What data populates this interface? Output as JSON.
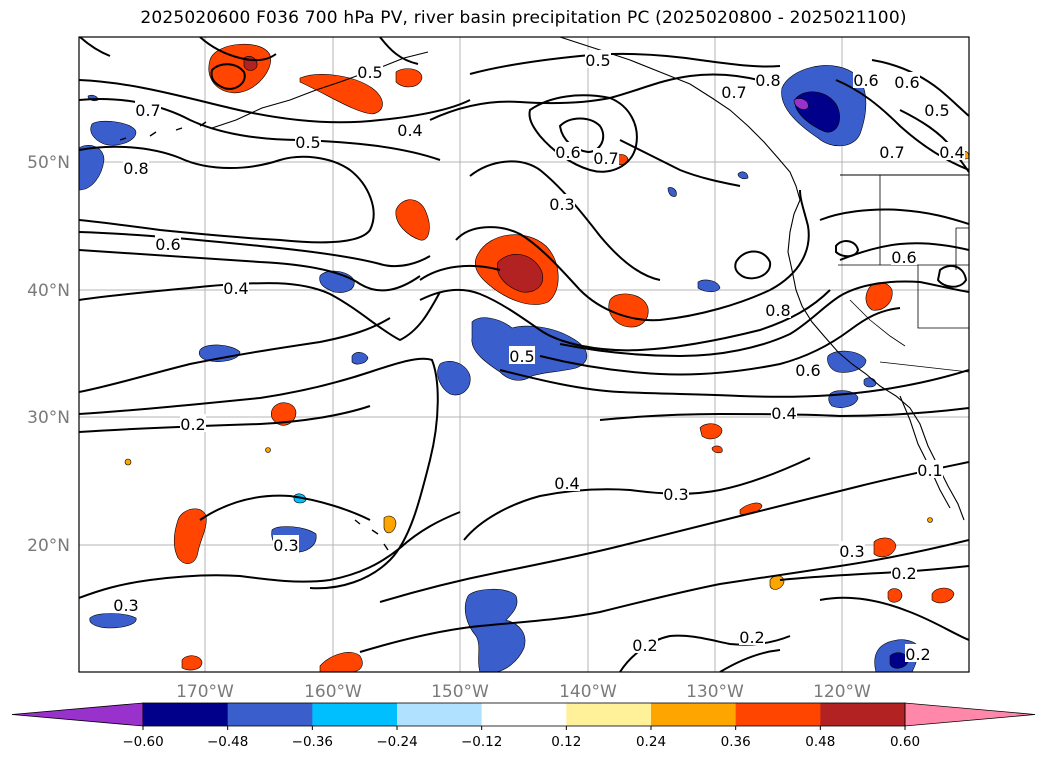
{
  "title": "2025020600 F036 700 hPa PV, river basin precipitation PC (2025020800 - 2025021100)",
  "map": {
    "lat_labels": [
      "50°N",
      "40°N",
      "30°N",
      "20°N"
    ],
    "lon_labels": [
      "170°W",
      "160°W",
      "150°W",
      "140°W",
      "130°W",
      "120°W"
    ],
    "contour_labels": [
      {
        "text": "0.5",
        "lx": 370,
        "ly": 72
      },
      {
        "text": "0.5",
        "lx": 598,
        "ly": 60
      },
      {
        "text": "0.8",
        "lx": 768,
        "ly": 80
      },
      {
        "text": "0.6",
        "lx": 866,
        "ly": 80
      },
      {
        "text": "0.6",
        "lx": 907,
        "ly": 82
      },
      {
        "text": "0.5",
        "lx": 937,
        "ly": 110
      },
      {
        "text": "0.7",
        "lx": 734,
        "ly": 92
      },
      {
        "text": "0.7",
        "lx": 148,
        "ly": 110
      },
      {
        "text": "0.4",
        "lx": 410,
        "ly": 130
      },
      {
        "text": "0.5",
        "lx": 308,
        "ly": 142
      },
      {
        "text": "0.6",
        "lx": 568,
        "ly": 152
      },
      {
        "text": "0.7",
        "lx": 606,
        "ly": 158
      },
      {
        "text": "0.7",
        "lx": 892,
        "ly": 152
      },
      {
        "text": "0.4",
        "lx": 952,
        "ly": 152
      },
      {
        "text": "0.8",
        "lx": 136,
        "ly": 168
      },
      {
        "text": "0.3",
        "lx": 562,
        "ly": 204
      },
      {
        "text": "0.6",
        "lx": 168,
        "ly": 244
      },
      {
        "text": "0.6",
        "lx": 904,
        "ly": 257
      },
      {
        "text": "0.4",
        "lx": 236,
        "ly": 288
      },
      {
        "text": "0.8",
        "lx": 778,
        "ly": 310
      },
      {
        "text": "0.5",
        "lx": 522,
        "ly": 356
      },
      {
        "text": "0.6",
        "lx": 808,
        "ly": 370
      },
      {
        "text": "0.4",
        "lx": 784,
        "ly": 413
      },
      {
        "text": "0.2",
        "lx": 193,
        "ly": 424
      },
      {
        "text": "0.4",
        "lx": 567,
        "ly": 483
      },
      {
        "text": "0.3",
        "lx": 676,
        "ly": 494
      },
      {
        "text": "0.1",
        "lx": 930,
        "ly": 470
      },
      {
        "text": "0.3",
        "lx": 286,
        "ly": 545
      },
      {
        "text": "0.3",
        "lx": 852,
        "ly": 551
      },
      {
        "text": "0.2",
        "lx": 904,
        "ly": 573
      },
      {
        "text": "0.3",
        "lx": 126,
        "ly": 605
      },
      {
        "text": "0.2",
        "lx": 645,
        "ly": 645
      },
      {
        "text": "0.2",
        "lx": 752,
        "ly": 637
      },
      {
        "text": "0.2",
        "lx": 918,
        "ly": 654
      }
    ]
  },
  "colorbar": {
    "tick_labels": [
      "−0.60",
      "−0.48",
      "−0.36",
      "−0.24",
      "−0.12",
      "0.12",
      "0.24",
      "0.36",
      "0.48",
      "0.60"
    ],
    "levels": [
      -0.6,
      -0.48,
      -0.36,
      -0.24,
      -0.12,
      0.12,
      0.24,
      0.36,
      0.48,
      0.6
    ],
    "colors": {
      "under": "#9932cc",
      "bins": [
        "#00008b",
        "#3a5fcd",
        "#00bfff",
        "#b0e2ff",
        "#ffffff",
        "#fff09a",
        "#ffa500",
        "#ff4500",
        "#b22222"
      ],
      "over": "#ff88aa"
    }
  }
}
